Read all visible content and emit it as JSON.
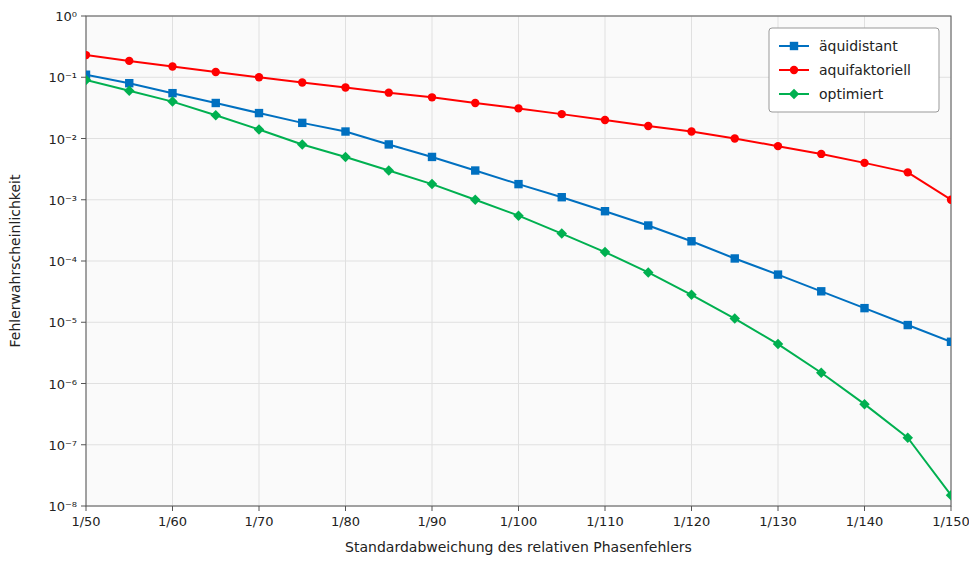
{
  "chart_data": {
    "type": "line",
    "xlabel": "Standardabweichung des relativen Phasenfehlers",
    "ylabel": "Fehlerwahrscheinlichkeit",
    "x": [
      50,
      55,
      60,
      65,
      70,
      75,
      80,
      85,
      90,
      95,
      100,
      105,
      110,
      115,
      120,
      125,
      130,
      135,
      140,
      145,
      150
    ],
    "series": [
      {
        "name": "äquidistant",
        "color": "#0070C0",
        "marker": "square",
        "values": [
          0.11,
          0.08,
          0.055,
          0.038,
          0.026,
          0.018,
          0.013,
          0.008,
          0.005,
          0.003,
          0.0018,
          0.0011,
          0.00065,
          0.00038,
          0.00021,
          0.00011,
          6e-05,
          3.2e-05,
          1.7e-05,
          9e-06,
          4.8e-06
        ]
      },
      {
        "name": "aquifaktoriell",
        "color": "#FF0000",
        "marker": "circle",
        "values": [
          0.23,
          0.185,
          0.15,
          0.122,
          0.1,
          0.082,
          0.068,
          0.056,
          0.047,
          0.038,
          0.031,
          0.025,
          0.02,
          0.016,
          0.013,
          0.01,
          0.0075,
          0.0056,
          0.004,
          0.0028,
          0.001
        ]
      },
      {
        "name": "optimiert",
        "color": "#00B050",
        "marker": "diamond",
        "values": [
          0.09,
          0.06,
          0.04,
          0.024,
          0.014,
          0.008,
          0.005,
          0.003,
          0.0018,
          0.001,
          0.00055,
          0.00028,
          0.00014,
          6.5e-05,
          2.8e-05,
          1.15e-05,
          4.4e-06,
          1.5e-06,
          4.6e-07,
          1.3e-07,
          1.5e-08
        ]
      }
    ],
    "xlim": [
      50,
      150
    ],
    "xticks": [
      {
        "value": 50,
        "label": "1/50"
      },
      {
        "value": 60,
        "label": "1/60"
      },
      {
        "value": 70,
        "label": "1/70"
      },
      {
        "value": 80,
        "label": "1/80"
      },
      {
        "value": 90,
        "label": "1/90"
      },
      {
        "value": 100,
        "label": "1/100"
      },
      {
        "value": 110,
        "label": "1/110"
      },
      {
        "value": 120,
        "label": "1/120"
      },
      {
        "value": 130,
        "label": "1/130"
      },
      {
        "value": 140,
        "label": "1/140"
      },
      {
        "value": 150,
        "label": "1/150"
      }
    ],
    "ylim": [
      1e-08,
      1.0
    ],
    "yticks": [
      {
        "value": 1e-08,
        "label": "10⁻⁸"
      },
      {
        "value": 1e-07,
        "label": "10⁻⁷"
      },
      {
        "value": 1e-06,
        "label": "10⁻⁶"
      },
      {
        "value": 1e-05,
        "label": "10⁻⁵"
      },
      {
        "value": 0.0001,
        "label": "10⁻⁴"
      },
      {
        "value": 0.001,
        "label": "10⁻³"
      },
      {
        "value": 0.01,
        "label": "10⁻²"
      },
      {
        "value": 0.1,
        "label": "10⁻¹"
      },
      {
        "value": 1,
        "label": "10⁰"
      }
    ],
    "log": "y",
    "grid": true,
    "legend": "upper right"
  }
}
